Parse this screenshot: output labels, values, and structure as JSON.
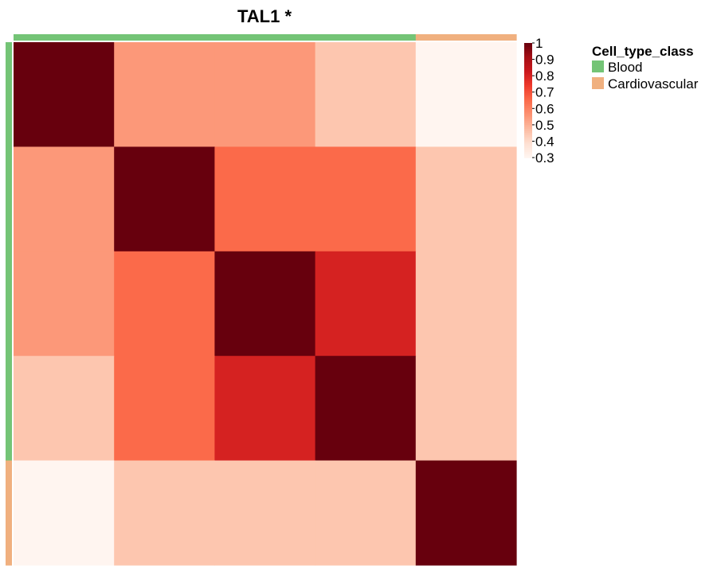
{
  "chart_data": {
    "type": "heatmap",
    "title": "TAL1 *",
    "n": 5,
    "matrix": [
      [
        1.0,
        0.55,
        0.55,
        0.45,
        0.3
      ],
      [
        0.55,
        1.0,
        0.65,
        0.65,
        0.45
      ],
      [
        0.55,
        0.65,
        1.0,
        0.8,
        0.45
      ],
      [
        0.45,
        0.65,
        0.8,
        1.0,
        0.45
      ],
      [
        0.3,
        0.45,
        0.45,
        0.45,
        1.0
      ]
    ],
    "annotation": {
      "name": "Cell_type_class",
      "values": [
        "Blood",
        "Blood",
        "Blood",
        "Blood",
        "Cardiovascular"
      ],
      "colors": {
        "Blood": "#74c476",
        "Cardiovascular": "#f0b07f"
      }
    },
    "colorbar": {
      "ticks": [
        "1",
        "0.9",
        "0.8",
        "0.7",
        "0.6",
        "0.5",
        "0.4",
        "0.3"
      ],
      "range": [
        0.3,
        1.0
      ],
      "colors": [
        "#fff5f0",
        "#fee0d2",
        "#fcbba1",
        "#fc9272",
        "#fb6a4a",
        "#ef3b2c",
        "#cb181d",
        "#a50f15",
        "#67000d"
      ]
    },
    "legend": {
      "title": "Cell_type_class",
      "items": [
        {
          "label": "Blood",
          "color": "#74c476"
        },
        {
          "label": "Cardiovascular",
          "color": "#f0b07f"
        }
      ],
      "position": "right"
    }
  }
}
